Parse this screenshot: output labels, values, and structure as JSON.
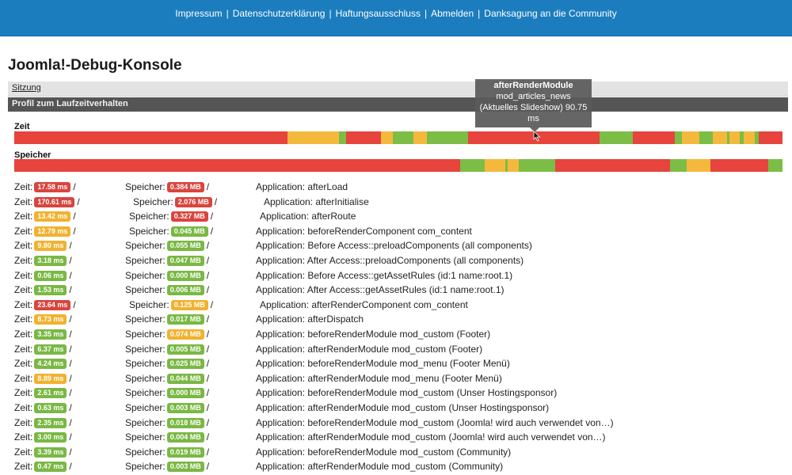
{
  "topnav": {
    "links": [
      "Impressum",
      "Datenschutzerklärung",
      "Haftungsausschluss",
      "Abmelden",
      "Danksagung an die Community"
    ],
    "separator": "|"
  },
  "page_title": "Joomla!-Debug-Konsole",
  "session_label": "Sitzung",
  "profile_label": "Profil zum Laufzeitverhalten",
  "zeit_label": "Zeit",
  "speicher_label": "Speicher",
  "colors": {
    "red": "#e6443c",
    "yellow": "#f4b93c",
    "green": "#7cbd45",
    "topbar": "#1c7dbe"
  },
  "tooltip": {
    "line1": "afterRenderModule",
    "line2": "mod_articles_news",
    "line3": "(Aktuelles Slideshow) 90.75",
    "line4": "ms"
  },
  "row_labels": {
    "zeit": "Zeit:",
    "speicher": "Speicher:",
    "slash": "/"
  },
  "rows": [
    {
      "time": "17.58 ms",
      "tc": "red",
      "mem": "0.384 MB",
      "mc": "red",
      "label": "Application: afterLoad"
    },
    {
      "time": "170.61 ms",
      "tc": "red",
      "mem": "2.076 MB",
      "mc": "red",
      "label": "Application: afterInitialise"
    },
    {
      "time": "13.42 ms",
      "tc": "yellow",
      "mem": "0.327 MB",
      "mc": "red",
      "label": "Application: afterRoute"
    },
    {
      "time": "12.79 ms",
      "tc": "yellow",
      "mem": "0.045 MB",
      "mc": "green",
      "label": "Application: beforeRenderComponent com_content"
    },
    {
      "time": "9.80 ms",
      "tc": "yellow",
      "mem": "0.055 MB",
      "mc": "green",
      "label": "Application: Before Access::preloadComponents (all components)"
    },
    {
      "time": "3.18 ms",
      "tc": "green",
      "mem": "0.047 MB",
      "mc": "green",
      "label": "Application: After Access::preloadComponents (all components)"
    },
    {
      "time": "0.06 ms",
      "tc": "green",
      "mem": "0.000 MB",
      "mc": "green",
      "label": "Application: Before Access::getAssetRules (id:1 name:root.1)"
    },
    {
      "time": "1.53 ms",
      "tc": "green",
      "mem": "0.006 MB",
      "mc": "green",
      "label": "Application: After Access::getAssetRules (id:1 name:root.1)"
    },
    {
      "time": "23.64 ms",
      "tc": "red",
      "mem": "0.125 MB",
      "mc": "yellow",
      "label": "Application: afterRenderComponent com_content"
    },
    {
      "time": "8.73 ms",
      "tc": "yellow",
      "mem": "0.017 MB",
      "mc": "green",
      "label": "Application: afterDispatch"
    },
    {
      "time": "3.35 ms",
      "tc": "green",
      "mem": "0.074 MB",
      "mc": "yellow",
      "label": "Application: beforeRenderModule mod_custom (Footer)"
    },
    {
      "time": "6.37 ms",
      "tc": "green",
      "mem": "0.005 MB",
      "mc": "green",
      "label": "Application: afterRenderModule mod_custom (Footer)"
    },
    {
      "time": "4.24 ms",
      "tc": "green",
      "mem": "0.025 MB",
      "mc": "green",
      "label": "Application: beforeRenderModule mod_menu (Footer Menü)"
    },
    {
      "time": "8.89 ms",
      "tc": "yellow",
      "mem": "0.044 MB",
      "mc": "green",
      "label": "Application: afterRenderModule mod_menu (Footer Menü)"
    },
    {
      "time": "2.61 ms",
      "tc": "green",
      "mem": "0.000 MB",
      "mc": "green",
      "label": "Application: beforeRenderModule mod_custom (Unser Hostingsponsor)"
    },
    {
      "time": "0.63 ms",
      "tc": "green",
      "mem": "0.003 MB",
      "mc": "green",
      "label": "Application: afterRenderModule mod_custom (Unser Hostingsponsor)"
    },
    {
      "time": "2.35 ms",
      "tc": "green",
      "mem": "0.018 MB",
      "mc": "green",
      "label": "Application: beforeRenderModule mod_custom (Joomla! wird auch verwendet von…)"
    },
    {
      "time": "3.00 ms",
      "tc": "green",
      "mem": "0.004 MB",
      "mc": "green",
      "label": "Application: afterRenderModule mod_custom (Joomla! wird auch verwendet von…)"
    },
    {
      "time": "3.39 ms",
      "tc": "green",
      "mem": "0.019 MB",
      "mc": "green",
      "label": "Application: beforeRenderModule mod_custom (Community)"
    },
    {
      "time": "0.47 ms",
      "tc": "green",
      "mem": "0.003 MB",
      "mc": "green",
      "label": "Application: afterRenderModule mod_custom (Community)"
    }
  ]
}
